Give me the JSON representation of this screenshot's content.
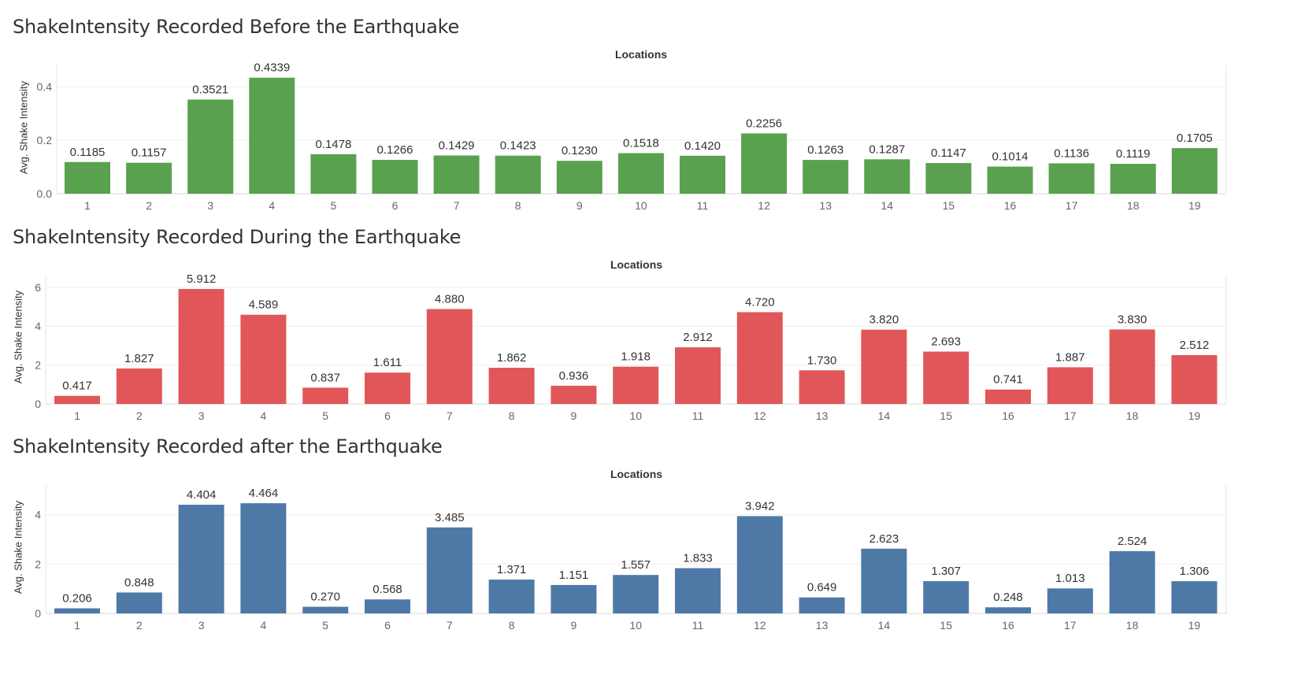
{
  "chart_data": [
    {
      "type": "bar",
      "title": "ShakeIntensity Recorded Before the Earthquake",
      "xlabel": "Locations",
      "ylabel": "Avg. Shake Intensity",
      "categories": [
        "1",
        "2",
        "3",
        "4",
        "5",
        "6",
        "7",
        "8",
        "9",
        "10",
        "11",
        "12",
        "13",
        "14",
        "15",
        "16",
        "17",
        "18",
        "19"
      ],
      "values": [
        0.1185,
        0.1157,
        0.3521,
        0.4339,
        0.1478,
        0.1266,
        0.1429,
        0.1423,
        0.123,
        0.1518,
        0.142,
        0.2256,
        0.1263,
        0.1287,
        0.1147,
        0.1014,
        0.1136,
        0.1119,
        0.1705
      ],
      "labels": [
        "0.1185",
        "0.1157",
        "0.3521",
        "0.4339",
        "0.1478",
        "0.1266",
        "0.1429",
        "0.1423",
        "0.1230",
        "0.1518",
        "0.1420",
        "0.2256",
        "0.1263",
        "0.1287",
        "0.1147",
        "0.1014",
        "0.1136",
        "0.1119",
        "0.1705"
      ],
      "yticks": [
        0.0,
        0.2,
        0.4
      ],
      "ytick_labels": [
        "0.0",
        "0.2",
        "0.4"
      ],
      "ylim": [
        0,
        0.48
      ],
      "color": "#59a14f",
      "grid": true
    },
    {
      "type": "bar",
      "title": "ShakeIntensity Recorded During the Earthquake",
      "xlabel": "Locations",
      "ylabel": "Avg. Shake Intensity",
      "categories": [
        "1",
        "2",
        "3",
        "4",
        "5",
        "6",
        "7",
        "8",
        "9",
        "10",
        "11",
        "12",
        "13",
        "14",
        "15",
        "16",
        "17",
        "18",
        "19"
      ],
      "values": [
        0.417,
        1.827,
        5.912,
        4.589,
        0.837,
        1.611,
        4.88,
        1.862,
        0.936,
        1.918,
        2.912,
        4.72,
        1.73,
        3.82,
        2.693,
        0.741,
        1.887,
        3.83,
        2.512
      ],
      "labels": [
        "0.417",
        "1.827",
        "5.912",
        "4.589",
        "0.837",
        "1.611",
        "4.880",
        "1.862",
        "0.936",
        "1.918",
        "2.912",
        "4.720",
        "1.730",
        "3.820",
        "2.693",
        "0.741",
        "1.887",
        "3.830",
        "2.512"
      ],
      "yticks": [
        0,
        2,
        4,
        6
      ],
      "ytick_labels": [
        "0",
        "2",
        "4",
        "6"
      ],
      "ylim": [
        0,
        6.6
      ],
      "color": "#e15759",
      "grid": true
    },
    {
      "type": "bar",
      "title": "ShakeIntensity Recorded after the Earthquake",
      "xlabel": "Locations",
      "ylabel": "Avg. Shake Intensity",
      "categories": [
        "1",
        "2",
        "3",
        "4",
        "5",
        "6",
        "7",
        "8",
        "9",
        "10",
        "11",
        "12",
        "13",
        "14",
        "15",
        "16",
        "17",
        "18",
        "19"
      ],
      "values": [
        0.206,
        0.848,
        4.404,
        4.464,
        0.27,
        0.568,
        3.485,
        1.371,
        1.151,
        1.557,
        1.833,
        3.942,
        0.649,
        2.623,
        1.307,
        0.248,
        1.013,
        2.524,
        1.306
      ],
      "labels": [
        "0.206",
        "0.848",
        "4.404",
        "4.464",
        "0.270",
        "0.568",
        "3.485",
        "1.371",
        "1.151",
        "1.557",
        "1.833",
        "3.942",
        "0.649",
        "2.623",
        "1.307",
        "0.248",
        "1.013",
        "2.524",
        "1.306"
      ],
      "yticks": [
        0,
        2,
        4
      ],
      "ytick_labels": [
        "0",
        "2",
        "4"
      ],
      "ylim": [
        0,
        5.2
      ],
      "color": "#4e79a7",
      "grid": true
    }
  ]
}
